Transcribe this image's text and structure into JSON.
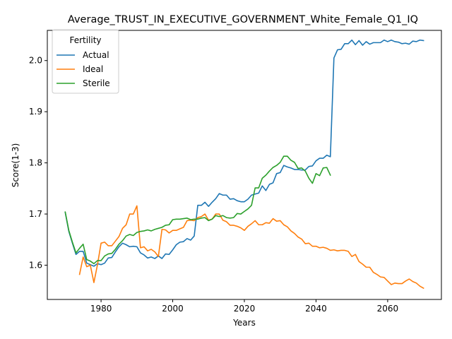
{
  "chart_data": {
    "type": "line",
    "title": "Average_TRUST_IN_EXECUTIVE_GOVERNMENT_White_Female_Q1_IQ",
    "xlabel": "Years",
    "ylabel": "Score(1-3)",
    "xlim": [
      1965,
      2075
    ],
    "ylim": [
      1.533,
      2.059
    ],
    "xticks": [
      1980,
      2000,
      2020,
      2040,
      2060
    ],
    "xtick_labels": [
      "1980",
      "2000",
      "2020",
      "2040",
      "2060"
    ],
    "yticks": [
      1.6,
      1.7,
      1.8,
      1.9,
      2.0
    ],
    "ytick_labels": [
      "1.6",
      "1.7",
      "1.8",
      "1.9",
      "2.0"
    ],
    "grid": false,
    "legend": {
      "title": "Fertility",
      "placement": "upper-left"
    },
    "series": [
      {
        "name": "Actual",
        "color": "#1f77b4",
        "x": [
          1970,
          1971,
          1972,
          1973,
          1974,
          1975,
          1976,
          1977,
          1978,
          1979,
          1980,
          1981,
          1982,
          1983,
          1984,
          1985,
          1986,
          1987,
          1988,
          1989,
          1990,
          1991,
          1992,
          1993,
          1994,
          1995,
          1996,
          1997,
          1998,
          1999,
          2000,
          2001,
          2002,
          2003,
          2004,
          2005,
          2006,
          2007,
          2008,
          2009,
          2010,
          2011,
          2012,
          2013,
          2014,
          2015,
          2016,
          2017,
          2018,
          2019,
          2020,
          2021,
          2022,
          2023,
          2024,
          2025,
          2026,
          2027,
          2028,
          2029,
          2030,
          2031,
          2032,
          2033,
          2034,
          2035,
          2036,
          2037,
          2038,
          2039,
          2040,
          2041,
          2042,
          2043,
          2044,
          2045,
          2046,
          2047,
          2048,
          2049,
          2050,
          2051,
          2052,
          2053,
          2054,
          2055,
          2056,
          2057,
          2058,
          2059,
          2060,
          2061,
          2062,
          2063,
          2064,
          2065,
          2066,
          2067,
          2068,
          2069,
          2070
        ],
        "values": [
          1.703,
          1.666,
          1.643,
          1.621,
          1.627,
          1.627,
          1.604,
          1.601,
          1.598,
          1.603,
          1.601,
          1.604,
          1.614,
          1.615,
          1.626,
          1.636,
          1.643,
          1.64,
          1.636,
          1.637,
          1.636,
          1.624,
          1.62,
          1.614,
          1.616,
          1.613,
          1.618,
          1.613,
          1.622,
          1.621,
          1.63,
          1.64,
          1.645,
          1.646,
          1.652,
          1.649,
          1.657,
          1.717,
          1.717,
          1.723,
          1.715,
          1.723,
          1.73,
          1.74,
          1.737,
          1.737,
          1.729,
          1.73,
          1.726,
          1.724,
          1.724,
          1.729,
          1.737,
          1.739,
          1.741,
          1.755,
          1.746,
          1.758,
          1.761,
          1.779,
          1.781,
          1.795,
          1.792,
          1.79,
          1.787,
          1.787,
          1.786,
          1.786,
          1.793,
          1.794,
          1.804,
          1.809,
          1.809,
          1.815,
          1.812,
          2.005,
          2.021,
          2.022,
          2.033,
          2.033,
          2.04,
          2.031,
          2.039,
          2.03,
          2.037,
          2.032,
          2.035,
          2.035,
          2.035,
          2.04,
          2.037,
          2.04,
          2.037,
          2.036,
          2.033,
          2.034,
          2.032,
          2.038,
          2.037,
          2.04,
          2.039
        ]
      },
      {
        "name": "Ideal",
        "color": "#ff7f0e",
        "x": [
          1974,
          1975,
          1976,
          1977,
          1978,
          1979,
          1980,
          1981,
          1982,
          1983,
          1984,
          1985,
          1986,
          1987,
          1988,
          1989,
          1990,
          1991,
          1992,
          1993,
          1994,
          1995,
          1996,
          1997,
          1998,
          1999,
          2000,
          2001,
          2002,
          2003,
          2004,
          2005,
          2006,
          2007,
          2008,
          2009,
          2010,
          2011,
          2012,
          2013,
          2014,
          2015,
          2016,
          2017,
          2018,
          2019,
          2020,
          2021,
          2022,
          2023,
          2024,
          2025,
          2026,
          2027,
          2028,
          2029,
          2030,
          2031,
          2032,
          2033,
          2034,
          2035,
          2036,
          2037,
          2038,
          2039,
          2040,
          2041,
          2042,
          2043,
          2044,
          2045,
          2046,
          2047,
          2048,
          2049,
          2050,
          2051,
          2052,
          2053,
          2054,
          2055,
          2056,
          2057,
          2058,
          2059,
          2060,
          2061,
          2062,
          2063,
          2064,
          2065,
          2066,
          2067,
          2068,
          2069,
          2070
        ],
        "values": [
          1.582,
          1.616,
          1.597,
          1.6,
          1.566,
          1.601,
          1.643,
          1.645,
          1.638,
          1.638,
          1.647,
          1.656,
          1.672,
          1.679,
          1.7,
          1.7,
          1.716,
          1.634,
          1.636,
          1.628,
          1.631,
          1.626,
          1.617,
          1.67,
          1.669,
          1.663,
          1.668,
          1.668,
          1.671,
          1.674,
          1.687,
          1.688,
          1.687,
          1.693,
          1.695,
          1.7,
          1.688,
          1.69,
          1.7,
          1.7,
          1.688,
          1.685,
          1.678,
          1.678,
          1.676,
          1.673,
          1.668,
          1.676,
          1.681,
          1.687,
          1.679,
          1.679,
          1.683,
          1.682,
          1.691,
          1.686,
          1.687,
          1.679,
          1.675,
          1.667,
          1.662,
          1.655,
          1.651,
          1.642,
          1.643,
          1.637,
          1.637,
          1.634,
          1.635,
          1.633,
          1.629,
          1.63,
          1.628,
          1.629,
          1.629,
          1.627,
          1.617,
          1.621,
          1.607,
          1.602,
          1.596,
          1.596,
          1.586,
          1.582,
          1.577,
          1.576,
          1.569,
          1.562,
          1.565,
          1.564,
          1.564,
          1.569,
          1.573,
          1.568,
          1.565,
          1.559,
          1.555
        ]
      },
      {
        "name": "Sterile",
        "color": "#2ca02c",
        "x": [
          1970,
          1971,
          1972,
          1973,
          1974,
          1975,
          1976,
          1977,
          1978,
          1979,
          1980,
          1981,
          1982,
          1983,
          1984,
          1985,
          1986,
          1987,
          1988,
          1989,
          1990,
          1991,
          1992,
          1993,
          1994,
          1995,
          1996,
          1997,
          1998,
          1999,
          2000,
          2001,
          2002,
          2003,
          2004,
          2005,
          2006,
          2007,
          2008,
          2009,
          2010,
          2011,
          2012,
          2013,
          2014,
          2015,
          2016,
          2017,
          2018,
          2019,
          2020,
          2021,
          2022,
          2023,
          2024,
          2025,
          2026,
          2027,
          2028,
          2029,
          2030,
          2031,
          2032,
          2033,
          2034,
          2035,
          2036,
          2037,
          2038,
          2039,
          2040,
          2041,
          2042,
          2043,
          2044
        ],
        "values": [
          1.704,
          1.668,
          1.645,
          1.624,
          1.633,
          1.641,
          1.611,
          1.608,
          1.603,
          1.609,
          1.609,
          1.618,
          1.622,
          1.623,
          1.631,
          1.641,
          1.648,
          1.657,
          1.66,
          1.658,
          1.664,
          1.666,
          1.667,
          1.669,
          1.667,
          1.67,
          1.672,
          1.674,
          1.678,
          1.679,
          1.689,
          1.69,
          1.69,
          1.691,
          1.692,
          1.689,
          1.69,
          1.69,
          1.692,
          1.693,
          1.687,
          1.69,
          1.697,
          1.695,
          1.697,
          1.693,
          1.692,
          1.693,
          1.701,
          1.7,
          1.705,
          1.71,
          1.717,
          1.751,
          1.751,
          1.77,
          1.776,
          1.784,
          1.791,
          1.795,
          1.801,
          1.813,
          1.813,
          1.805,
          1.801,
          1.789,
          1.79,
          1.784,
          1.77,
          1.76,
          1.779,
          1.775,
          1.79,
          1.791,
          1.776
        ]
      }
    ]
  }
}
